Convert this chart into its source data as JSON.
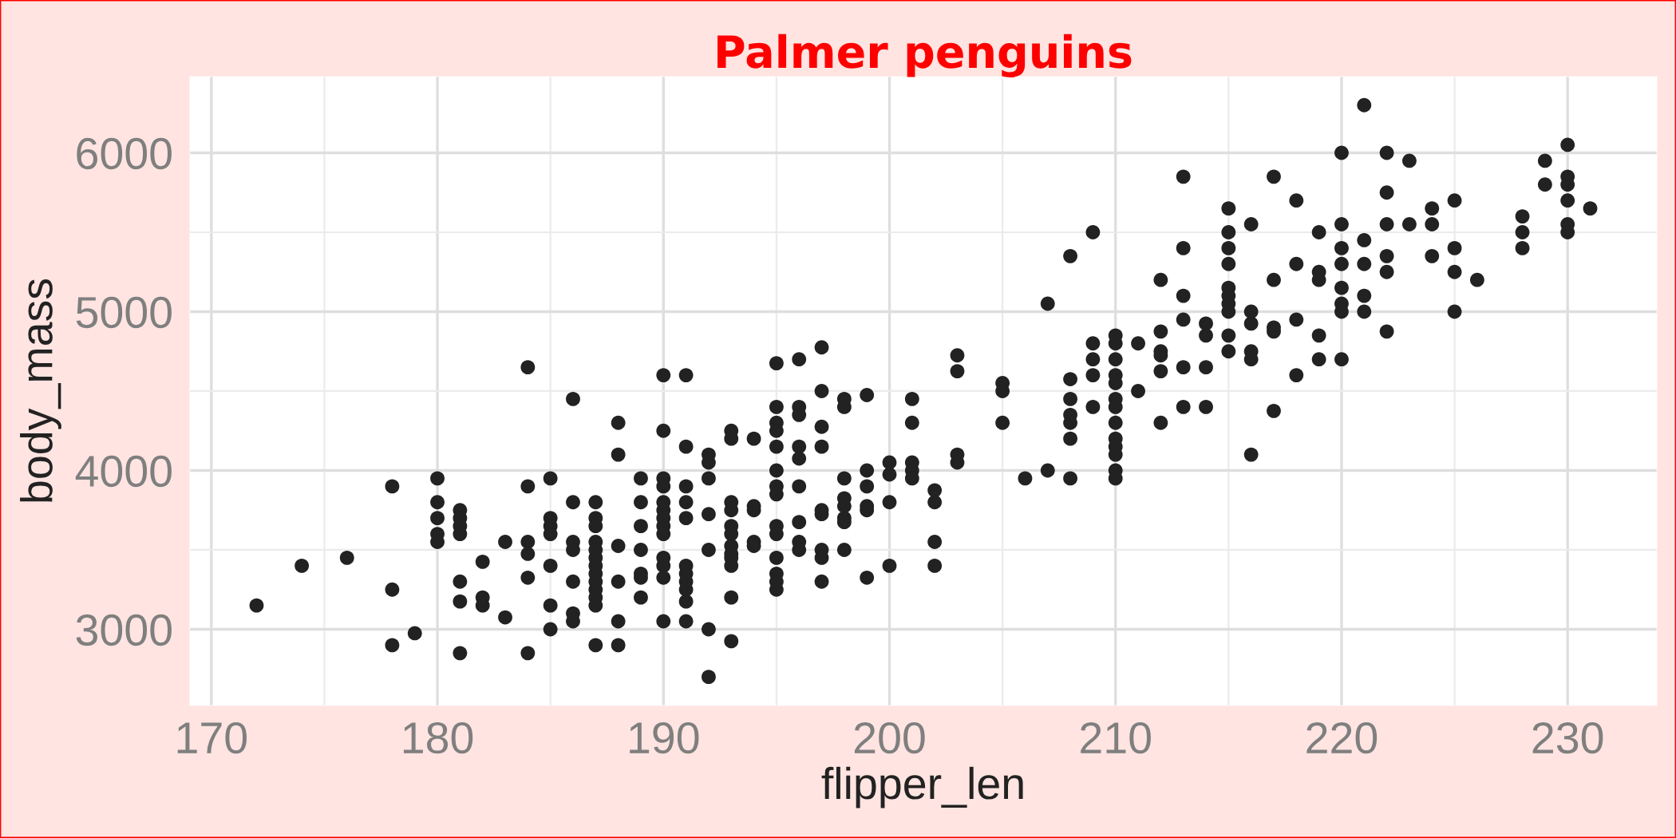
{
  "chart_data": {
    "type": "scatter",
    "title": "Palmer penguins",
    "xlabel": "flipper_len",
    "ylabel": "body_mass",
    "color": "#222222",
    "marker": "circle",
    "grid": true,
    "xlim": [
      169.05,
      233.95
    ],
    "ylim": [
      2520,
      6480
    ],
    "xticks": [
      170,
      {
        "value": 175,
        "label": null
      },
      180,
      {
        "value": 185,
        "label": null
      },
      190,
      {
        "value": 195,
        "label": null
      },
      200,
      {
        "value": 205,
        "label": null
      },
      210,
      {
        "value": 215,
        "label": null
      },
      220,
      {
        "value": 225,
        "label": null
      },
      230
    ],
    "yticks": [
      3000,
      {
        "value": 3500,
        "label": null
      },
      4000,
      {
        "value": 4500,
        "label": null
      },
      5000,
      {
        "value": 5500,
        "label": null
      },
      6000
    ],
    "x": [
      172,
      174,
      176,
      178,
      178,
      178,
      179,
      180,
      180,
      180,
      180,
      180,
      181,
      181,
      181,
      181,
      181,
      181,
      181,
      182,
      182,
      182,
      183,
      183,
      184,
      184,
      184,
      184,
      184,
      184,
      185,
      185,
      185,
      185,
      185,
      185,
      185,
      186,
      186,
      186,
      186,
      186,
      186,
      186,
      187,
      187,
      187,
      187,
      187,
      187,
      187,
      187,
      187,
      187,
      187,
      187,
      187,
      188,
      188,
      188,
      188,
      188,
      188,
      189,
      189,
      189,
      189,
      189,
      189,
      189,
      190,
      190,
      190,
      190,
      190,
      190,
      190,
      190,
      190,
      190,
      190,
      190,
      190,
      191,
      191,
      191,
      191,
      191,
      191,
      191,
      191,
      191,
      191,
      191,
      192,
      192,
      192,
      192,
      192,
      192,
      192,
      193,
      193,
      193,
      193,
      193,
      193,
      193,
      193,
      193,
      193,
      193,
      193,
      194,
      194,
      194,
      194,
      194,
      195,
      195,
      195,
      195,
      195,
      195,
      195,
      195,
      195,
      195,
      195,
      195,
      195,
      195,
      196,
      196,
      196,
      196,
      196,
      196,
      196,
      196,
      196,
      197,
      197,
      197,
      197,
      197,
      197,
      197,
      197,
      197,
      198,
      198,
      198,
      198,
      198,
      198,
      198,
      198,
      199,
      199,
      199,
      199,
      199,
      199,
      200,
      200,
      200,
      200,
      201,
      201,
      201,
      201,
      201,
      202,
      202,
      202,
      202,
      203,
      203,
      203,
      203,
      205,
      205,
      205,
      206,
      207,
      207,
      208,
      208,
      208,
      208,
      208,
      208,
      208,
      209,
      209,
      209,
      209,
      209,
      210,
      210,
      210,
      210,
      210,
      210,
      210,
      210,
      210,
      210,
      210,
      210,
      210,
      211,
      211,
      212,
      212,
      212,
      212,
      212,
      212,
      213,
      213,
      213,
      213,
      213,
      213,
      214,
      214,
      214,
      214,
      215,
      215,
      215,
      215,
      215,
      215,
      215,
      215,
      215,
      215,
      216,
      216,
      216,
      216,
      216,
      216,
      217,
      217,
      217,
      217,
      217,
      218,
      218,
      218,
      218,
      219,
      219,
      219,
      219,
      219,
      220,
      220,
      220,
      220,
      220,
      220,
      220,
      220,
      221,
      221,
      221,
      221,
      221,
      222,
      222,
      222,
      222,
      222,
      222,
      223,
      223,
      224,
      224,
      224,
      225,
      225,
      225,
      225,
      226,
      228,
      228,
      228,
      229,
      229,
      230,
      230,
      230,
      230,
      230,
      230,
      231
    ],
    "values": [
      3150,
      3400,
      3450,
      3900,
      3250,
      2900,
      2975,
      3950,
      3800,
      3700,
      3600,
      3550,
      3750,
      3700,
      3650,
      3600,
      3300,
      3175,
      2850,
      3425,
      3200,
      3150,
      3550,
      3075,
      4650,
      3900,
      3550,
      3475,
      3325,
      2850,
      3950,
      3700,
      3650,
      3600,
      3400,
      3150,
      3000,
      4450,
      3800,
      3550,
      3500,
      3300,
      3100,
      3050,
      3800,
      3700,
      3650,
      3550,
      3500,
      3450,
      3400,
      3350,
      3300,
      3250,
      3200,
      3150,
      2900,
      4300,
      4100,
      3525,
      3300,
      3050,
      2900,
      3950,
      3800,
      3650,
      3500,
      3350,
      3325,
      3200,
      4600,
      4250,
      3950,
      3900,
      3800,
      3750,
      3700,
      3650,
      3600,
      3450,
      3400,
      3325,
      3050,
      4600,
      4150,
      3900,
      3800,
      3700,
      3400,
      3350,
      3300,
      3250,
      3175,
      3050,
      4100,
      4050,
      3950,
      3725,
      3500,
      3000,
      2700,
      4250,
      4200,
      3800,
      3750,
      3650,
      3600,
      3525,
      3475,
      3450,
      3400,
      3200,
      2925,
      4200,
      3775,
      3750,
      3550,
      3525,
      4675,
      4400,
      4300,
      4250,
      4150,
      4000,
      3900,
      3850,
      3650,
      3600,
      3450,
      3350,
      3300,
      3250,
      4700,
      4400,
      4350,
      4150,
      4075,
      3900,
      3675,
      3550,
      3500,
      4775,
      4500,
      4275,
      4150,
      3750,
      3725,
      3500,
      3450,
      3300,
      4450,
      4400,
      3950,
      3825,
      3775,
      3700,
      3675,
      3500,
      4475,
      4000,
      3900,
      3775,
      3750,
      3325,
      4050,
      3975,
      3800,
      3400,
      4450,
      4300,
      4050,
      4000,
      3950,
      3875,
      3800,
      3550,
      3400,
      4725,
      4625,
      4100,
      4050,
      4550,
      4500,
      4300,
      3950,
      5050,
      4000,
      5350,
      4575,
      4450,
      4350,
      4300,
      4200,
      3950,
      5500,
      4800,
      4700,
      4600,
      4400,
      4850,
      4800,
      4700,
      4600,
      4550,
      4450,
      4400,
      4300,
      4200,
      4150,
      4100,
      4000,
      3950,
      4800,
      4500,
      5200,
      4875,
      4750,
      4725,
      4625,
      4300,
      5850,
      5400,
      5100,
      4950,
      4650,
      4400,
      4925,
      4850,
      4650,
      4400,
      5650,
      5500,
      5400,
      5300,
      5150,
      5100,
      5050,
      5000,
      4850,
      4750,
      5550,
      5000,
      4925,
      4750,
      4700,
      4100,
      5850,
      5200,
      4900,
      4875,
      4375,
      5700,
      5300,
      4950,
      4600,
      5500,
      5250,
      5200,
      4850,
      4700,
      6000,
      5550,
      5400,
      5300,
      5150,
      5050,
      5000,
      4700,
      6300,
      5450,
      5300,
      5100,
      5000,
      6000,
      5750,
      5550,
      5350,
      5250,
      4875,
      5950,
      5550,
      5650,
      5550,
      5350,
      5700,
      5400,
      5250,
      5000,
      5200,
      5600,
      5500,
      5400,
      5950,
      5800,
      6050,
      5850,
      5800,
      5700,
      5550,
      5500,
      5650
    ]
  }
}
